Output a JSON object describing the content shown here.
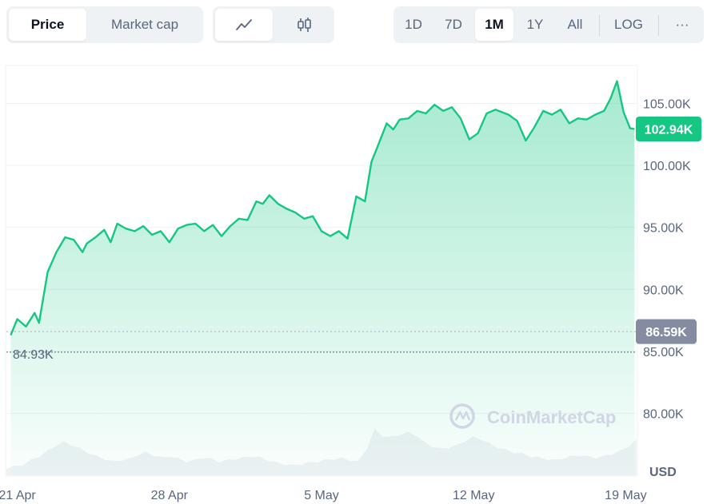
{
  "toolbar": {
    "metric_tabs": [
      {
        "label": "Price",
        "active": true
      },
      {
        "label": "Market cap",
        "active": false
      }
    ],
    "chart_type_tabs": [
      {
        "icon": "line-chart-icon",
        "active": true
      },
      {
        "icon": "candlestick-icon",
        "active": false
      }
    ],
    "range_tabs": [
      {
        "label": "1D",
        "active": false
      },
      {
        "label": "7D",
        "active": false
      },
      {
        "label": "1M",
        "active": true
      },
      {
        "label": "1Y",
        "active": false
      },
      {
        "label": "All",
        "active": false
      }
    ],
    "log_label": "LOG",
    "more_label": "···"
  },
  "watermark": "CoinMarketCap",
  "currency_label": "USD",
  "badges": {
    "current": {
      "label": "102.94K",
      "color": "#16c784"
    },
    "open": {
      "label": "86.59K",
      "color": "#858ca2"
    },
    "low": {
      "label": "84.93K"
    }
  },
  "colors": {
    "line": "#16c784",
    "volume": "#eff2f5",
    "grid": "#eff2f5"
  },
  "chart_data": {
    "type": "area",
    "title": "",
    "xlabel": "",
    "ylabel": "",
    "y_unit": "USD",
    "ylim": [
      75000,
      108000
    ],
    "y_ticks": [
      80000,
      85000,
      90000,
      95000,
      100000,
      105000
    ],
    "y_tick_labels": [
      "80.00K",
      "85.00K",
      "90.00K",
      "95.00K",
      "100.00K",
      "105.00K"
    ],
    "x_ticks": [
      {
        "day": 0,
        "label": "21 Apr"
      },
      {
        "day": 7,
        "label": "28 Apr"
      },
      {
        "day": 14,
        "label": "5 May"
      },
      {
        "day": 21,
        "label": "12 May"
      },
      {
        "day": 28,
        "label": "19 May"
      }
    ],
    "xlim": [
      -0.5,
      28.5
    ],
    "grid": true,
    "open_price": 86590,
    "current_price": 102940,
    "low_price": 84930,
    "series": [
      {
        "x": [
          -0.3,
          0,
          0.4,
          0.8,
          1,
          1.4,
          1.8,
          2.2,
          2.6,
          3,
          3.2,
          3.6,
          4,
          4.3,
          4.6,
          5,
          5.4,
          5.8,
          6.2,
          6.6,
          7,
          7.4,
          7.8,
          8.2,
          8.6,
          9,
          9.4,
          9.8,
          10.2,
          10.6,
          11,
          11.3,
          11.6,
          12,
          12.4,
          12.8,
          13.2,
          13.6,
          14,
          14.4,
          14.8,
          15.2,
          15.6,
          16,
          16.3,
          16.6,
          17,
          17.3,
          17.6,
          18,
          18.4,
          18.8,
          19.2,
          19.6,
          20,
          20.4,
          20.8,
          21.2,
          21.6,
          22,
          22.3,
          22.6,
          23,
          23.4,
          23.8,
          24.2,
          24.6,
          25,
          25.4,
          25.8,
          26.2,
          26.6,
          27,
          27.3,
          27.6,
          27.9,
          28.2,
          28.4
        ],
        "y": [
          86300,
          87600,
          87000,
          88100,
          87300,
          91400,
          93000,
          94200,
          94000,
          93000,
          93700,
          94200,
          94800,
          93800,
          95300,
          94900,
          94700,
          95100,
          94400,
          94700,
          93800,
          94900,
          95200,
          95300,
          94700,
          95200,
          94300,
          95100,
          95700,
          95600,
          97100,
          96900,
          97600,
          96900,
          96500,
          96200,
          95700,
          95900,
          94700,
          94300,
          94700,
          94100,
          97500,
          97100,
          100300,
          101600,
          103400,
          102900,
          103700,
          103800,
          104400,
          104200,
          104900,
          104400,
          104700,
          103800,
          102100,
          102600,
          104200,
          104500,
          104300,
          104100,
          103600,
          102000,
          103100,
          104400,
          104100,
          104500,
          103400,
          103800,
          103700,
          104100,
          104400,
          105400,
          106800,
          104300,
          103000,
          102940
        ]
      }
    ],
    "volume_area_relative": [
      0.1,
      0.12,
      0.15,
      0.22,
      0.28,
      0.36,
      0.45,
      0.5,
      0.46,
      0.4,
      0.34,
      0.28,
      0.24,
      0.2,
      0.22,
      0.24,
      0.3,
      0.34,
      0.3,
      0.26,
      0.28,
      0.24,
      0.2,
      0.22,
      0.26,
      0.24,
      0.2,
      0.22,
      0.24,
      0.26,
      0.28,
      0.26,
      0.22,
      0.18,
      0.16,
      0.14,
      0.16,
      0.18,
      0.2,
      0.22,
      0.24,
      0.25,
      0.22,
      0.2,
      0.4,
      0.7,
      0.6,
      0.58,
      0.62,
      0.65,
      0.62,
      0.5,
      0.44,
      0.4,
      0.42,
      0.45,
      0.52,
      0.58,
      0.55,
      0.48,
      0.42,
      0.38,
      0.34,
      0.32,
      0.28,
      0.26,
      0.24,
      0.22,
      0.25,
      0.28,
      0.3,
      0.28,
      0.26,
      0.28,
      0.32,
      0.36,
      0.44,
      0.54
    ]
  }
}
